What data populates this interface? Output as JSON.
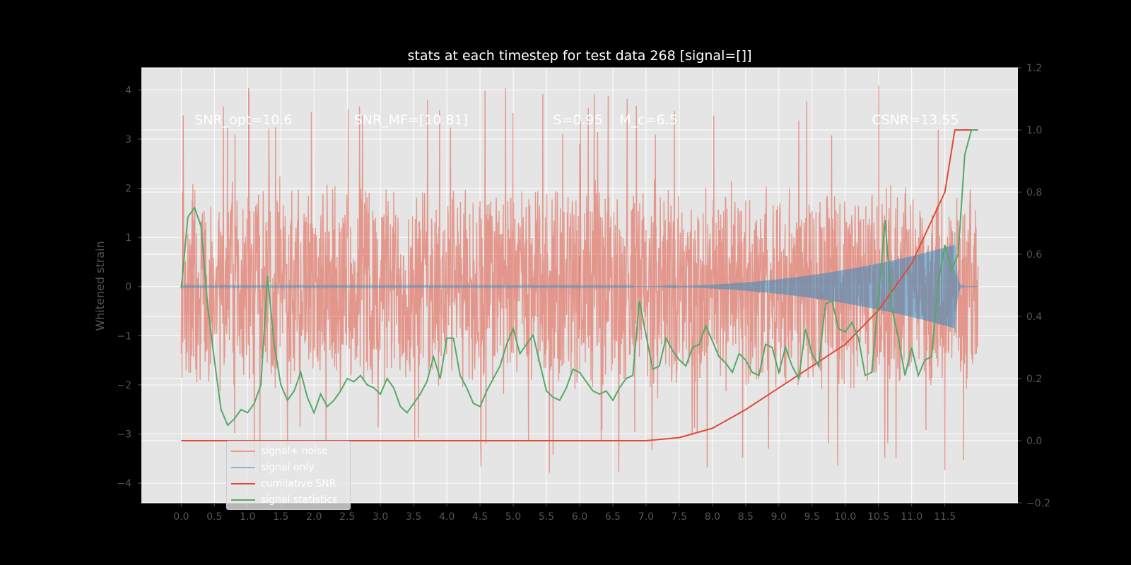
{
  "chart_data": {
    "type": "line",
    "title": "stats at each timestep for test data 268 [signal=[]]",
    "xlabel": "",
    "ylabel": "Whitened strain",
    "xlim": [
      -0.6,
      12.6
    ],
    "ylim": [
      -4.4,
      4.45
    ],
    "ylim_right": [
      -0.2,
      1.2
    ],
    "x_ticks": [
      "0.0",
      "0.5",
      "1.0",
      "1.5",
      "2.0",
      "2.5",
      "3.0",
      "3.5",
      "4.0",
      "4.5",
      "5.0",
      "5.5",
      "6.0",
      "6.5",
      "7.0",
      "7.5",
      "8.0",
      "8.5",
      "9.0",
      "9.5",
      "10.0",
      "10.5",
      "11.0",
      "11.5"
    ],
    "y_ticks_left": [
      "4",
      "3",
      "2",
      "1",
      "0",
      "−1",
      "−2",
      "−3",
      "−4"
    ],
    "y_ticks_right": [
      "1.2",
      "1.0",
      "0.8",
      "0.6",
      "0.4",
      "0.2",
      "0.0",
      "−0.2"
    ],
    "grid": true,
    "legend_position": "lower-left",
    "colors": {
      "figure_bg": "#000000",
      "axes_bg": "#e5e5e5",
      "grid": "#ffffff",
      "tick_text": "#555555",
      "noise": "#e24a33",
      "signal": "#348abd",
      "cumulative_snr": "#e24a33",
      "statistics": "#55a868",
      "annotation": "#ffffff"
    },
    "annotations": [
      {
        "id": "snr-opt",
        "text": "SNR_opt=10.6",
        "x": 0.2,
        "y": 3.3
      },
      {
        "id": "snr-mf",
        "text": "SNR_MF=[10.81]",
        "x": 2.6,
        "y": 3.3
      },
      {
        "id": "s-value",
        "text": "S=0.95",
        "x": 5.6,
        "y": 3.3
      },
      {
        "id": "mc-value",
        "text": "M_c=6.5",
        "x": 6.6,
        "y": 3.3
      },
      {
        "id": "csnr",
        "text": "CSNR=13.55",
        "x": 10.4,
        "y": 3.3
      }
    ],
    "vline_x": 6.0,
    "series": [
      {
        "name": "signal+ noise",
        "type": "noise",
        "x_start": 0.0,
        "x_end": 12.0,
        "envelope_low": -2.2,
        "envelope_high": 2.3,
        "peak_low": -3.8,
        "peak_high": 4.1
      },
      {
        "name": "signal only",
        "type": "chirp",
        "x_start": 0.0,
        "x_end": 12.0,
        "amplitude_start": 0.0,
        "amplitude_at_11_6": 0.85,
        "merger_x": 11.65,
        "merger_amplitude": 1.2
      },
      {
        "name": "cumilative SNR",
        "axis": "right",
        "x": [
          0.0,
          7.0,
          7.5,
          8.0,
          8.5,
          9.0,
          9.5,
          10.0,
          10.5,
          11.0,
          11.5,
          11.65,
          12.0
        ],
        "values": [
          0.0,
          0.0,
          0.01,
          0.04,
          0.1,
          0.17,
          0.24,
          0.31,
          0.42,
          0.57,
          0.8,
          1.0,
          1.0
        ]
      },
      {
        "name": "signal statistics",
        "axis": "right",
        "x": [
          0.0,
          0.1,
          0.2,
          0.3,
          0.4,
          0.5,
          0.6,
          0.7,
          0.8,
          0.9,
          1.0,
          1.1,
          1.2,
          1.3,
          1.4,
          1.5,
          1.6,
          1.7,
          1.8,
          1.9,
          2.0,
          2.1,
          2.2,
          2.3,
          2.4,
          2.5,
          2.6,
          2.7,
          2.8,
          2.9,
          3.0,
          3.1,
          3.2,
          3.3,
          3.4,
          3.5,
          3.6,
          3.7,
          3.8,
          3.9,
          4.0,
          4.1,
          4.2,
          4.3,
          4.4,
          4.5,
          4.6,
          4.7,
          4.8,
          4.9,
          5.0,
          5.1,
          5.2,
          5.3,
          5.4,
          5.5,
          5.6,
          5.7,
          5.8,
          5.9,
          6.0,
          6.1,
          6.2,
          6.3,
          6.4,
          6.5,
          6.6,
          6.7,
          6.8,
          6.9,
          7.0,
          7.1,
          7.2,
          7.3,
          7.4,
          7.5,
          7.6,
          7.7,
          7.8,
          7.9,
          8.0,
          8.1,
          8.2,
          8.3,
          8.4,
          8.5,
          8.6,
          8.7,
          8.8,
          8.9,
          9.0,
          9.1,
          9.2,
          9.3,
          9.4,
          9.5,
          9.6,
          9.7,
          9.8,
          9.9,
          10.0,
          10.1,
          10.2,
          10.3,
          10.4,
          10.5,
          10.6,
          10.7,
          10.8,
          10.9,
          11.0,
          11.1,
          11.2,
          11.3,
          11.4,
          11.5,
          11.6,
          11.7,
          11.8,
          11.9,
          12.0
        ],
        "values": [
          0.49,
          0.72,
          0.75,
          0.69,
          0.43,
          0.26,
          0.1,
          0.05,
          0.07,
          0.1,
          0.09,
          0.12,
          0.18,
          0.53,
          0.31,
          0.18,
          0.13,
          0.16,
          0.22,
          0.14,
          0.09,
          0.15,
          0.11,
          0.13,
          0.16,
          0.2,
          0.19,
          0.21,
          0.18,
          0.17,
          0.15,
          0.2,
          0.17,
          0.11,
          0.09,
          0.12,
          0.15,
          0.19,
          0.27,
          0.2,
          0.33,
          0.33,
          0.21,
          0.17,
          0.12,
          0.11,
          0.16,
          0.2,
          0.24,
          0.31,
          0.36,
          0.28,
          0.31,
          0.34,
          0.25,
          0.16,
          0.14,
          0.13,
          0.17,
          0.23,
          0.22,
          0.19,
          0.16,
          0.15,
          0.16,
          0.13,
          0.17,
          0.2,
          0.21,
          0.45,
          0.34,
          0.23,
          0.24,
          0.33,
          0.29,
          0.26,
          0.24,
          0.3,
          0.31,
          0.37,
          0.32,
          0.27,
          0.25,
          0.22,
          0.28,
          0.26,
          0.22,
          0.21,
          0.31,
          0.3,
          0.22,
          0.3,
          0.24,
          0.2,
          0.36,
          0.28,
          0.24,
          0.44,
          0.45,
          0.36,
          0.35,
          0.38,
          0.33,
          0.21,
          0.22,
          0.46,
          0.71,
          0.43,
          0.33,
          0.21,
          0.3,
          0.21,
          0.26,
          0.27,
          0.51,
          0.63,
          0.55,
          0.6,
          0.92,
          1.0,
          1.0
        ]
      }
    ]
  }
}
